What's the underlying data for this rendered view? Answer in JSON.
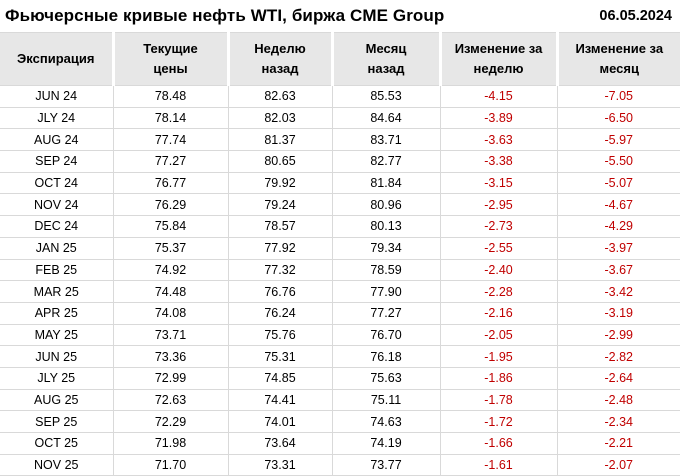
{
  "page": {
    "title": "Фьючерсные кривые нефть WTI, биржа CME Group",
    "date": "06.05.2024"
  },
  "chart_data": {
    "type": "table",
    "title": "Фьючерсные кривые нефть WTI, биржа CME Group",
    "date": "06.05.2024",
    "columns": [
      "Экспирация",
      "Текущие цены",
      "Неделю назад",
      "Месяц назад",
      "Изменение за неделю",
      "Изменение за месяц"
    ],
    "column_labels_wrapped": [
      "Экспирация",
      "Текущие\nцены",
      "Неделю\nназад",
      "Месяц\nназад",
      "Изменение за\nнеделю",
      "Изменение за\nмесяц"
    ],
    "rows": [
      [
        "JUN 24",
        78.48,
        82.63,
        85.53,
        -4.15,
        -7.05
      ],
      [
        "JLY 24",
        78.14,
        82.03,
        84.64,
        -3.89,
        -6.5
      ],
      [
        "AUG 24",
        77.74,
        81.37,
        83.71,
        -3.63,
        -5.97
      ],
      [
        "SEP 24",
        77.27,
        80.65,
        82.77,
        -3.38,
        -5.5
      ],
      [
        "OCT 24",
        76.77,
        79.92,
        81.84,
        -3.15,
        -5.07
      ],
      [
        "NOV 24",
        76.29,
        79.24,
        80.96,
        -2.95,
        -4.67
      ],
      [
        "DEC 24",
        75.84,
        78.57,
        80.13,
        -2.73,
        -4.29
      ],
      [
        "JAN 25",
        75.37,
        77.92,
        79.34,
        -2.55,
        -3.97
      ],
      [
        "FEB 25",
        74.92,
        77.32,
        78.59,
        -2.4,
        -3.67
      ],
      [
        "MAR 25",
        74.48,
        76.76,
        77.9,
        -2.28,
        -3.42
      ],
      [
        "APR 25",
        74.08,
        76.24,
        77.27,
        -2.16,
        -3.19
      ],
      [
        "MAY 25",
        73.71,
        75.76,
        76.7,
        -2.05,
        -2.99
      ],
      [
        "JUN 25",
        73.36,
        75.31,
        76.18,
        -1.95,
        -2.82
      ],
      [
        "JLY 25",
        72.99,
        74.85,
        75.63,
        -1.86,
        -2.64
      ],
      [
        "AUG 25",
        72.63,
        74.41,
        75.11,
        -1.78,
        -2.48
      ],
      [
        "SEP 25",
        72.29,
        74.01,
        74.63,
        -1.72,
        -2.34
      ],
      [
        "OCT 25",
        71.98,
        73.64,
        74.19,
        -1.66,
        -2.21
      ],
      [
        "NOV 25",
        71.7,
        73.31,
        73.77,
        -1.61,
        -2.07
      ]
    ],
    "negative_change_columns": [
      4,
      5
    ]
  },
  "colors": {
    "negative_value": "#c00000",
    "header_background": "#e7e7e7",
    "grid_line": "#d9d9d9",
    "text": "#000000",
    "background": "#ffffff"
  }
}
